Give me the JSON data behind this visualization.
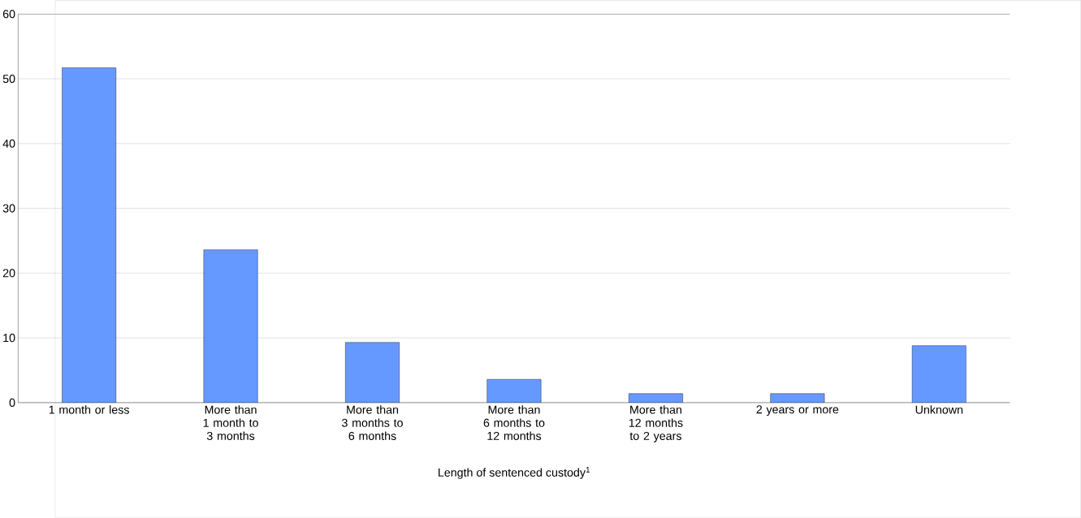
{
  "chart_data": {
    "type": "bar",
    "xlabel": "Length of sentenced custody$^{1}$",
    "categories": [
      "1 month or less",
      "More than 1 month to 3 months",
      "More than 3 months to 6 months",
      "More than 6 months to 12 months",
      "More than 12 months to 2 years",
      "2 years or more",
      "Unknown"
    ],
    "values": [
      51.7,
      23.6,
      9.3,
      3.6,
      1.4,
      1.4,
      8.8
    ],
    "color": "#6699ff",
    "ylim": [
      0,
      60
    ],
    "yticks": [
      0,
      10,
      20,
      30,
      40,
      50,
      60
    ],
    "grid": "y"
  }
}
